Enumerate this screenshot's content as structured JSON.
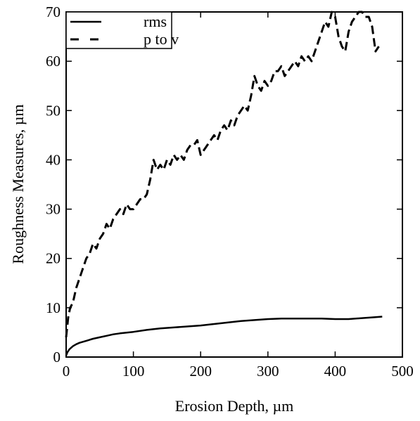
{
  "chart_data": {
    "type": "line",
    "title": "",
    "xlabel": "Erosion Depth, µm",
    "ylabel": "Roughness Measures, µm",
    "xlim": [
      0,
      500
    ],
    "ylim": [
      0,
      70
    ],
    "xticks": [
      "0",
      "100",
      "200",
      "300",
      "400",
      "500"
    ],
    "yticks": [
      "0",
      "10",
      "20",
      "30",
      "40",
      "50",
      "60",
      "70"
    ],
    "grid": false,
    "legend_position": "top-left",
    "series": [
      {
        "name": "rms",
        "style": "solid",
        "color": "#000000",
        "x": [
          0,
          2,
          5,
          10,
          15,
          20,
          30,
          40,
          50,
          60,
          70,
          80,
          100,
          120,
          140,
          160,
          180,
          200,
          220,
          240,
          260,
          280,
          300,
          320,
          340,
          360,
          380,
          400,
          420,
          440,
          460,
          470
        ],
        "y": [
          0.3,
          1.0,
          1.6,
          2.2,
          2.6,
          2.9,
          3.3,
          3.7,
          4.0,
          4.3,
          4.6,
          4.8,
          5.1,
          5.5,
          5.8,
          6.0,
          6.2,
          6.4,
          6.7,
          7.0,
          7.3,
          7.5,
          7.7,
          7.8,
          7.8,
          7.8,
          7.8,
          7.7,
          7.7,
          7.9,
          8.1,
          8.2
        ]
      },
      {
        "name": "p to v",
        "style": "dashed",
        "color": "#000000",
        "x": [
          0,
          3,
          6,
          10,
          15,
          20,
          25,
          30,
          35,
          40,
          45,
          50,
          55,
          60,
          65,
          70,
          75,
          80,
          85,
          90,
          95,
          100,
          105,
          110,
          115,
          120,
          125,
          130,
          135,
          140,
          145,
          150,
          155,
          160,
          165,
          170,
          175,
          180,
          185,
          190,
          195,
          200,
          205,
          210,
          215,
          220,
          225,
          230,
          235,
          240,
          245,
          250,
          255,
          260,
          265,
          270,
          275,
          280,
          285,
          290,
          295,
          300,
          305,
          310,
          315,
          320,
          325,
          330,
          335,
          340,
          345,
          350,
          355,
          360,
          365,
          370,
          375,
          380,
          385,
          390,
          395,
          400,
          405,
          410,
          415,
          420,
          425,
          430,
          435,
          440,
          445,
          450,
          455,
          460,
          465
        ],
        "y": [
          4,
          8,
          10,
          11,
          14,
          16,
          18,
          20,
          21,
          23,
          22,
          24,
          25,
          27,
          26,
          28,
          29,
          30,
          29,
          31,
          30,
          30,
          31,
          32,
          32,
          33,
          36,
          40,
          38,
          39,
          38,
          40,
          39,
          41,
          40,
          41,
          40,
          42,
          43,
          43,
          44,
          41,
          42,
          43,
          44,
          45,
          44,
          46,
          47,
          46,
          48,
          47,
          49,
          50,
          51,
          50,
          53,
          57,
          55,
          54,
          56,
          55,
          56,
          58,
          58,
          59,
          57,
          58,
          59,
          60,
          59,
          61,
          60,
          61,
          60,
          62,
          64,
          66,
          68,
          67,
          70,
          69,
          65,
          63,
          62,
          66,
          68,
          69,
          70,
          70,
          69,
          69,
          67,
          62,
          63
        ]
      }
    ]
  }
}
